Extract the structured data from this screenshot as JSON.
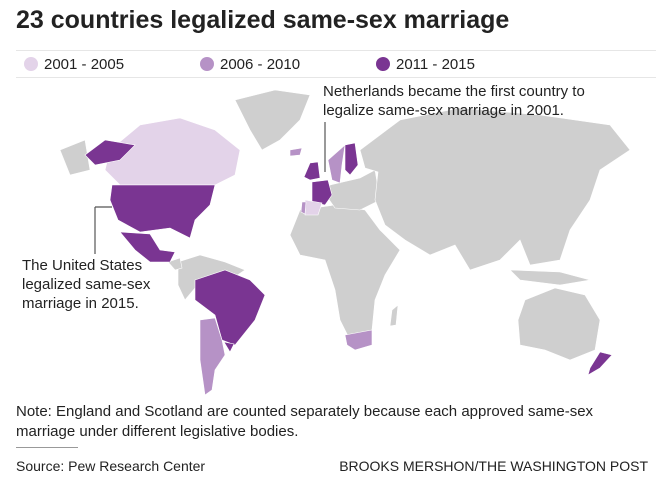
{
  "title": "23 countries legalized same-sex marriage",
  "legend": [
    {
      "label": "2001 - 2005",
      "color": "#e3d3e9"
    },
    {
      "label": "2006 - 2010",
      "color": "#b692c6"
    },
    {
      "label": "2011 - 2015",
      "color": "#7a3592"
    }
  ],
  "land_color": "#cfcfcf",
  "annotations": {
    "netherlands": "Netherlands became the first country to legalize same-sex marriage in 2001.",
    "us": "The United States legalized same-sex marriage in 2015."
  },
  "note": "Note: England and Scotland are counted separately because each approved same-sex marriage under different legislative bodies.",
  "source": "Source: Pew Research Center",
  "credit": "BROOKS MERSHON/THE WASHINGTON POST"
}
